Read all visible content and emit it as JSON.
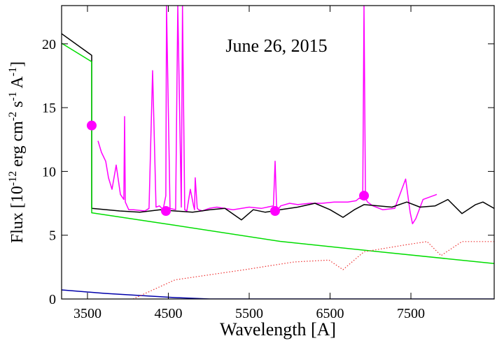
{
  "chart_data": {
    "type": "line",
    "annotation": "June 26, 2015",
    "xlabel": "Wavelength [A]",
    "ylabel_parts": [
      "Flux [10",
      "-12",
      " erg cm",
      "-2",
      " s",
      "-1",
      " A",
      "-1",
      "]"
    ],
    "xlim": [
      3180,
      8530
    ],
    "ylim": [
      0,
      23
    ],
    "xticks": [
      3500,
      4500,
      5500,
      6500,
      7500
    ],
    "yticks": [
      0,
      5,
      10,
      15,
      20
    ],
    "series": [
      {
        "color": "#ff00ff",
        "dash": false,
        "x": [
          3630,
          3673,
          3725,
          3760,
          3803,
          3855,
          3907,
          3950,
          3959,
          3968,
          4010,
          4070,
          4209,
          4261,
          4305,
          4348,
          4391,
          4435,
          4469,
          4478,
          4521,
          4590,
          4617,
          4660,
          4675,
          4703,
          4729,
          4772,
          4812,
          4824,
          4833,
          4858,
          4876,
          4919,
          5006,
          5100,
          5300,
          5500,
          5650,
          5800,
          5820,
          5838,
          5846,
          5855,
          5890,
          6000,
          6100,
          6250,
          6400,
          6550,
          6720,
          6820,
          6860,
          6904,
          6920,
          6938,
          6964,
          7030,
          7150,
          7300,
          7435,
          7490,
          7520,
          7560,
          7650,
          7820
        ],
        "values": [
          12.4,
          11.5,
          10.8,
          9.5,
          8.6,
          10.5,
          8.2,
          7.8,
          14.3,
          7.6,
          7.0,
          7.0,
          6.9,
          7.1,
          17.9,
          7.2,
          7.3,
          7.0,
          8.1,
          23,
          7.1,
          7.0,
          23,
          7.2,
          23,
          7.0,
          6.9,
          8.6,
          7.3,
          7.0,
          9.5,
          7.1,
          7.0,
          6.9,
          7.1,
          7.2,
          7.0,
          7.2,
          7.1,
          7.3,
          10.8,
          7.4,
          7.0,
          7.0,
          7.3,
          7.5,
          7.4,
          7.5,
          7.5,
          7.6,
          7.6,
          7.7,
          7.9,
          7.8,
          23,
          7.9,
          7.6,
          7.3,
          7.0,
          7.1,
          9.4,
          6.8,
          5.9,
          6.3,
          7.8,
          8.2
        ]
      },
      {
        "color": "#000000",
        "dash": false,
        "x": [
          3180,
          3552,
          3552,
          3900,
          4149,
          4400,
          4582,
          4800,
          5015,
          5200,
          5404,
          5550,
          5700,
          5881,
          6100,
          6314,
          6500,
          6660,
          6800,
          6920,
          7100,
          7266,
          7450,
          7612,
          7800,
          7958,
          8131,
          8300,
          8391,
          8530
        ],
        "values": [
          20.8,
          19.1,
          7.1,
          6.9,
          6.8,
          7.0,
          6.9,
          6.8,
          7.0,
          7.1,
          6.2,
          7.0,
          6.8,
          7.0,
          7.2,
          7.5,
          7.0,
          6.4,
          7.0,
          7.4,
          7.3,
          7.2,
          7.6,
          7.2,
          7.3,
          7.8,
          6.7,
          7.4,
          7.6,
          7.1
        ]
      },
      {
        "color": "#00dd00",
        "dash": false,
        "x": [
          3180,
          3552,
          3552,
          4582,
          5881,
          7180,
          8530
        ],
        "values": [
          20.05,
          18.6,
          6.76,
          5.78,
          4.52,
          3.65,
          2.78
        ]
      },
      {
        "color": "#0000aa",
        "dash": false,
        "x": [
          3180,
          3717,
          4582,
          5015,
          8530
        ],
        "values": [
          0.71,
          0.44,
          0.11,
          0,
          0
        ]
      },
      {
        "color": "#ee3333",
        "dash": true,
        "x": [
          4063,
          4582,
          5448,
          6054,
          6487,
          6660,
          6920,
          7440,
          7700,
          7873,
          8131,
          8530
        ],
        "values": [
          0,
          1.5,
          2.3,
          2.9,
          3.05,
          2.3,
          3.7,
          4.25,
          4.5,
          3.4,
          4.5,
          4.5
        ]
      }
    ],
    "points": {
      "color": "#ff00ff",
      "x": [
        3552,
        4470,
        5820,
        6920
      ],
      "values": [
        13.6,
        6.9,
        6.9,
        8.1
      ]
    }
  }
}
